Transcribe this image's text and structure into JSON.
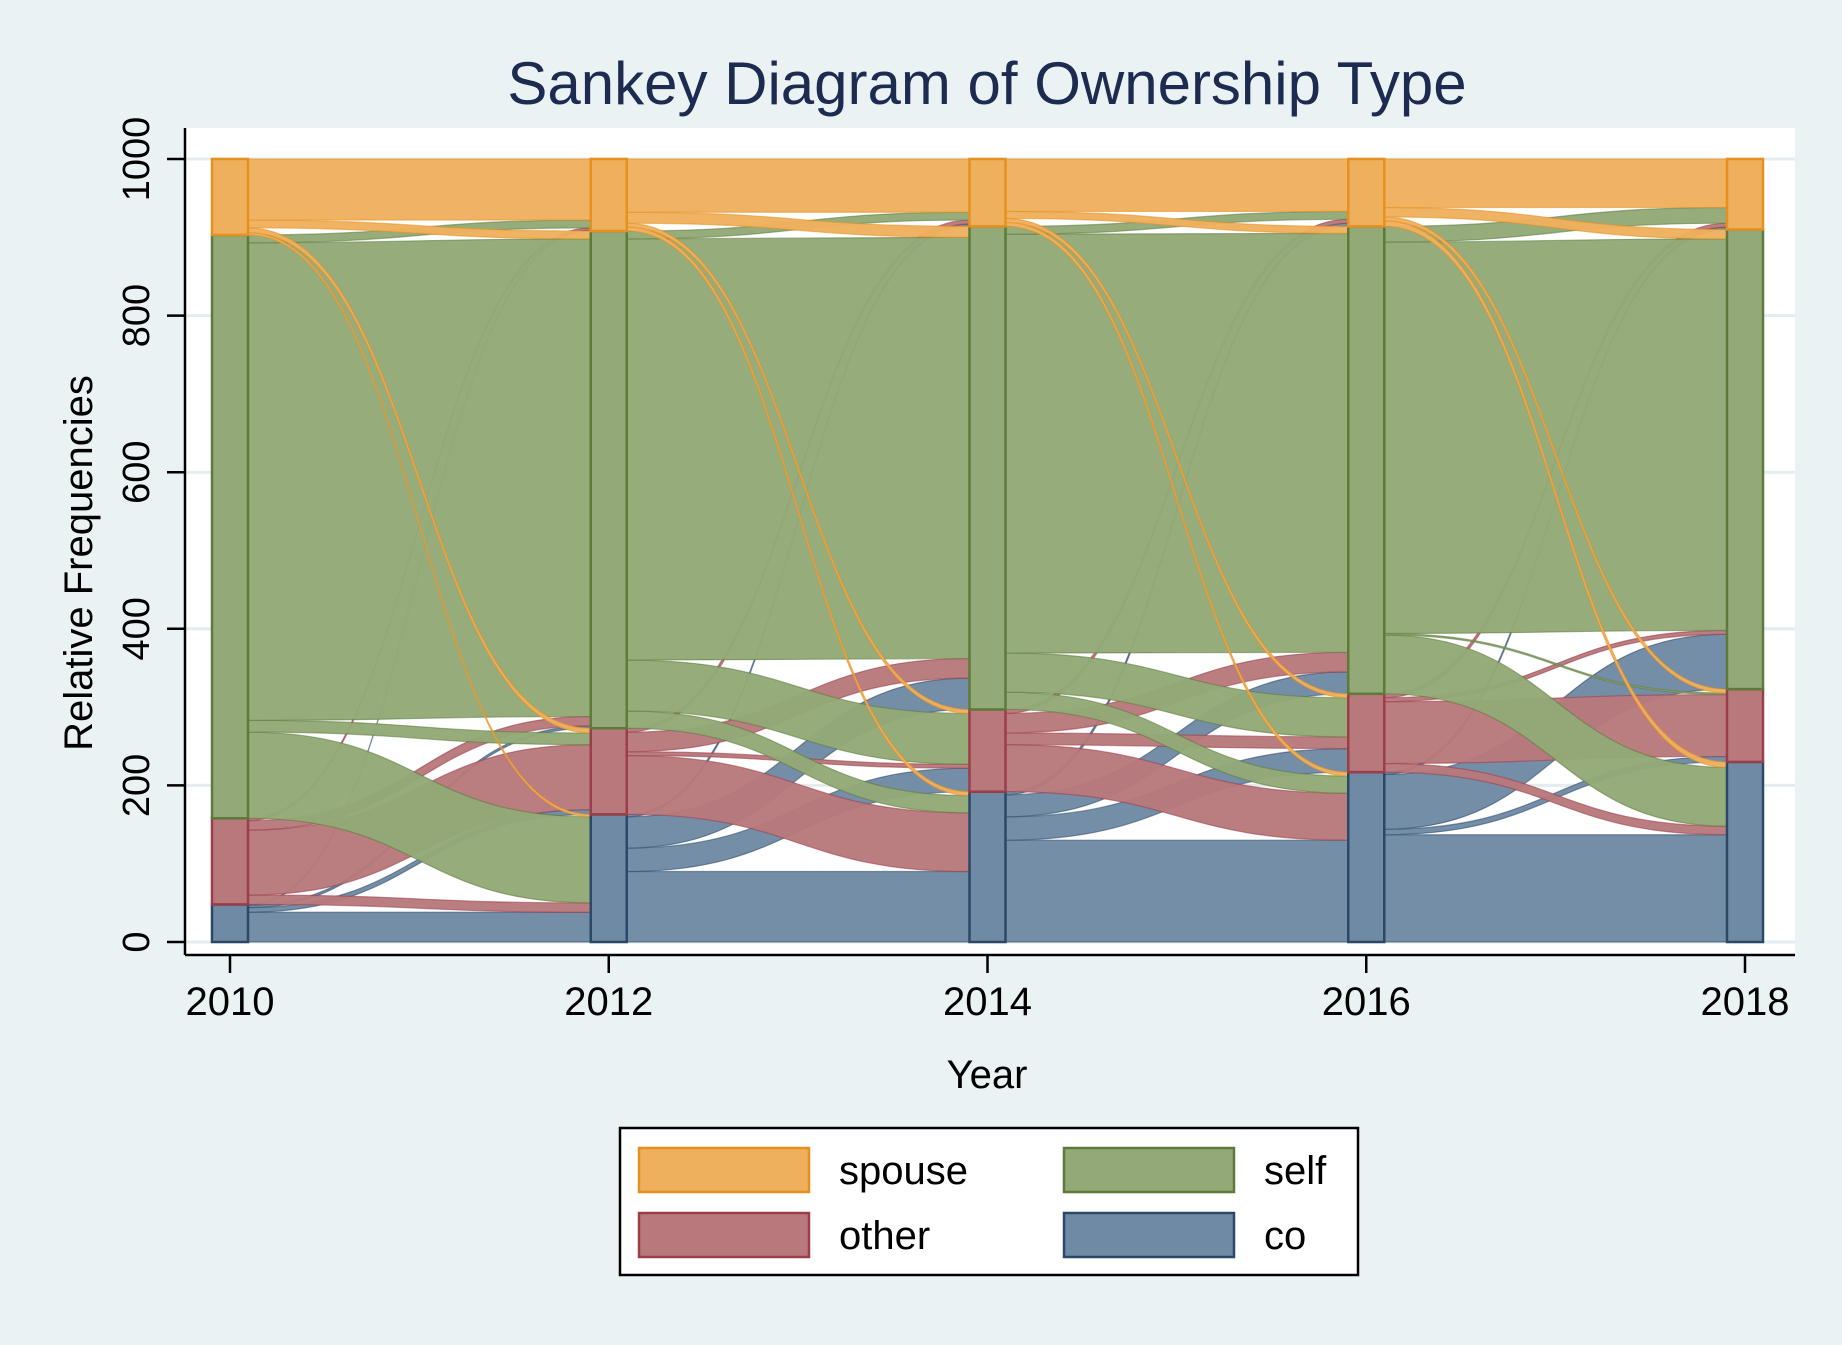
{
  "chart_data": {
    "type": "sankey",
    "title": "Sankey Diagram of Ownership Type",
    "xlabel": "Year",
    "ylabel": "Relative Frequencies",
    "xlim": [
      2010,
      2018
    ],
    "ylim": [
      0,
      1000
    ],
    "x_ticks": [
      2010,
      2012,
      2014,
      2016,
      2018
    ],
    "y_ticks": [
      0,
      200,
      400,
      600,
      800,
      1000
    ],
    "grid": true,
    "legend": {
      "position": "bottom",
      "columns": 2,
      "entries": [
        "spouse",
        "self",
        "other",
        "co"
      ]
    },
    "categories": [
      "spouse",
      "self",
      "other",
      "co"
    ],
    "years": [
      2010,
      2012,
      2014,
      2016,
      2018
    ],
    "colors": {
      "spouse": "#efb05e",
      "self": "#93a977",
      "other": "#b8797c",
      "co": "#6f8aa4",
      "spouse_edge": "#e6901f",
      "self_edge": "#5d7a3b",
      "other_edge": "#9c3d48",
      "co_edge": "#2b4866",
      "axis": "#000000",
      "grid": "#e4ecee",
      "plot_bg": "#ffffff",
      "page_bg": "#eaf2f3",
      "title": "#1d2b50"
    },
    "node_values": [
      {
        "year": 2010,
        "co": 48,
        "other": 110,
        "self": 745,
        "spouse": 97
      },
      {
        "year": 2012,
        "co": 163,
        "other": 110,
        "self": 635,
        "spouse": 92
      },
      {
        "year": 2014,
        "co": 192,
        "other": 105,
        "self": 617,
        "spouse": 86
      },
      {
        "year": 2016,
        "co": 217,
        "other": 100,
        "self": 597,
        "spouse": 86
      },
      {
        "year": 2018,
        "co": 230,
        "other": 93,
        "self": 587,
        "spouse": 90
      }
    ],
    "flows": [
      [
        {
          "from": "co",
          "to": "co",
          "value": 38
        },
        {
          "from": "co",
          "to": "other",
          "value": 6
        },
        {
          "from": "co",
          "to": "self",
          "value": 3
        },
        {
          "from": "co",
          "to": "spouse",
          "value": 1
        },
        {
          "from": "other",
          "to": "co",
          "value": 12
        },
        {
          "from": "other",
          "to": "other",
          "value": 83
        },
        {
          "from": "other",
          "to": "self",
          "value": 12
        },
        {
          "from": "other",
          "to": "spouse",
          "value": 3
        },
        {
          "from": "self",
          "to": "co",
          "value": 110
        },
        {
          "from": "self",
          "to": "other",
          "value": 15
        },
        {
          "from": "self",
          "to": "self",
          "value": 610
        },
        {
          "from": "self",
          "to": "spouse",
          "value": 10
        },
        {
          "from": "spouse",
          "to": "co",
          "value": 3
        },
        {
          "from": "spouse",
          "to": "other",
          "value": 6
        },
        {
          "from": "spouse",
          "to": "self",
          "value": 10
        },
        {
          "from": "spouse",
          "to": "spouse",
          "value": 78
        }
      ],
      [
        {
          "from": "co",
          "to": "co",
          "value": 90
        },
        {
          "from": "co",
          "to": "other",
          "value": 30
        },
        {
          "from": "co",
          "to": "self",
          "value": 40
        },
        {
          "from": "co",
          "to": "spouse",
          "value": 3
        },
        {
          "from": "other",
          "to": "co",
          "value": 75
        },
        {
          "from": "other",
          "to": "other",
          "value": 5
        },
        {
          "from": "other",
          "to": "self",
          "value": 25
        },
        {
          "from": "other",
          "to": "spouse",
          "value": 5
        },
        {
          "from": "self",
          "to": "co",
          "value": 22
        },
        {
          "from": "self",
          "to": "other",
          "value": 65
        },
        {
          "from": "self",
          "to": "self",
          "value": 538
        },
        {
          "from": "self",
          "to": "spouse",
          "value": 10
        },
        {
          "from": "spouse",
          "to": "co",
          "value": 5
        },
        {
          "from": "spouse",
          "to": "other",
          "value": 5
        },
        {
          "from": "spouse",
          "to": "self",
          "value": 14
        },
        {
          "from": "spouse",
          "to": "spouse",
          "value": 68
        }
      ],
      [
        {
          "from": "co",
          "to": "co",
          "value": 130
        },
        {
          "from": "co",
          "to": "other",
          "value": 30
        },
        {
          "from": "co",
          "to": "self",
          "value": 28
        },
        {
          "from": "co",
          "to": "spouse",
          "value": 4
        },
        {
          "from": "other",
          "to": "co",
          "value": 60
        },
        {
          "from": "other",
          "to": "other",
          "value": 15
        },
        {
          "from": "other",
          "to": "self",
          "value": 25
        },
        {
          "from": "other",
          "to": "spouse",
          "value": 5
        },
        {
          "from": "self",
          "to": "co",
          "value": 22
        },
        {
          "from": "self",
          "to": "other",
          "value": 50
        },
        {
          "from": "self",
          "to": "self",
          "value": 535
        },
        {
          "from": "self",
          "to": "spouse",
          "value": 10
        },
        {
          "from": "spouse",
          "to": "co",
          "value": 5
        },
        {
          "from": "spouse",
          "to": "other",
          "value": 5
        },
        {
          "from": "spouse",
          "to": "self",
          "value": 9
        },
        {
          "from": "spouse",
          "to": "spouse",
          "value": 67
        }
      ],
      [
        {
          "from": "co",
          "to": "co",
          "value": 137
        },
        {
          "from": "co",
          "to": "other",
          "value": 7
        },
        {
          "from": "co",
          "to": "self",
          "value": 70
        },
        {
          "from": "co",
          "to": "spouse",
          "value": 3
        },
        {
          "from": "other",
          "to": "co",
          "value": 11
        },
        {
          "from": "other",
          "to": "other",
          "value": 79
        },
        {
          "from": "other",
          "to": "self",
          "value": 5
        },
        {
          "from": "other",
          "to": "spouse",
          "value": 5
        },
        {
          "from": "self",
          "to": "co",
          "value": 75
        },
        {
          "from": "self",
          "to": "other",
          "value": 2
        },
        {
          "from": "self",
          "to": "self",
          "value": 500
        },
        {
          "from": "self",
          "to": "spouse",
          "value": 20
        },
        {
          "from": "spouse",
          "to": "co",
          "value": 7
        },
        {
          "from": "spouse",
          "to": "other",
          "value": 5
        },
        {
          "from": "spouse",
          "to": "self",
          "value": 12
        },
        {
          "from": "spouse",
          "to": "spouse",
          "value": 62
        }
      ]
    ]
  }
}
